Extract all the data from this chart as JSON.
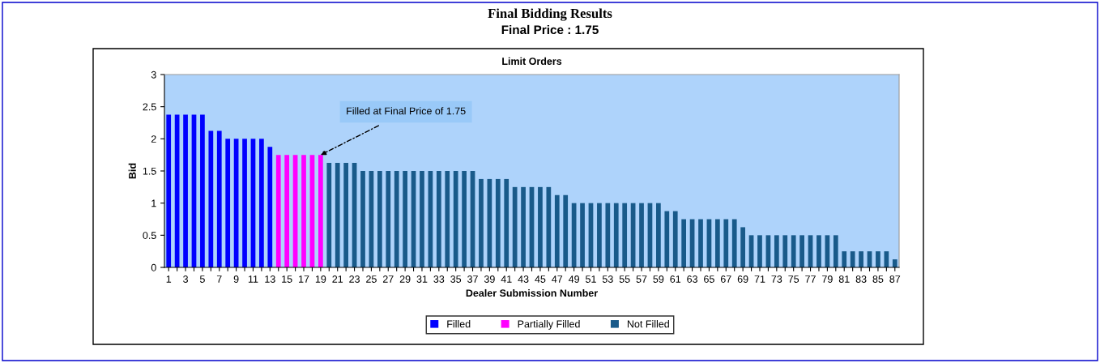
{
  "chart_data": {
    "type": "bar",
    "title": "Final Bidding Results",
    "subtitle": "Final Price : 1.75",
    "xlabel": "Dealer Submission Number",
    "ylabel": "Bid",
    "categories": [
      "1",
      null,
      "3",
      null,
      "5",
      null,
      "7",
      null,
      "9",
      null,
      "11",
      null,
      "13",
      null,
      "15",
      null,
      "17",
      null,
      "19",
      null,
      "21",
      null,
      "23",
      null,
      "25",
      null,
      "27",
      null,
      "29",
      null,
      "31",
      null,
      "33",
      null,
      "35",
      null,
      "37",
      null,
      "39",
      null,
      "41",
      null,
      "43",
      null,
      "45",
      null,
      "47",
      null,
      "49",
      null,
      "51",
      null,
      "53",
      null,
      "55",
      null,
      "57",
      null,
      "59",
      null,
      "61",
      null,
      "63",
      null,
      "65",
      null,
      "67",
      null,
      "69",
      null,
      "71",
      null,
      "73",
      null,
      "75",
      null,
      "77",
      null,
      "79",
      null,
      "81",
      null,
      "83",
      null,
      "85",
      null,
      "87"
    ],
    "series": [
      {
        "name": "Filled",
        "color": "#0000ff",
        "values": [
          2.375,
          2.375,
          2.375,
          2.375,
          2.375,
          2.125,
          2.125,
          2.0,
          2.0,
          2.0,
          2.0,
          2.0,
          1.875,
          null,
          null,
          null,
          null,
          null,
          null,
          null,
          null,
          null,
          null,
          null,
          null,
          null,
          null,
          null,
          null,
          null,
          null,
          null,
          null,
          null,
          null,
          null,
          null,
          null,
          null,
          null,
          null,
          null,
          null,
          null,
          null,
          null,
          null,
          null,
          null,
          null,
          null,
          null,
          null,
          null,
          null,
          null,
          null,
          null,
          null,
          null,
          null,
          null,
          null,
          null,
          null,
          null,
          null,
          null,
          null,
          null,
          null,
          null,
          null,
          null,
          null,
          null,
          null,
          null,
          null,
          null,
          null,
          null,
          null,
          null,
          null,
          null,
          null
        ]
      },
      {
        "name": "Partially Filled",
        "color": "#ff00ff",
        "values": [
          null,
          null,
          null,
          null,
          null,
          null,
          null,
          null,
          null,
          null,
          null,
          null,
          null,
          1.75,
          1.75,
          1.75,
          1.75,
          1.75,
          1.75,
          null,
          null,
          null,
          null,
          null,
          null,
          null,
          null,
          null,
          null,
          null,
          null,
          null,
          null,
          null,
          null,
          null,
          null,
          null,
          null,
          null,
          null,
          null,
          null,
          null,
          null,
          null,
          null,
          null,
          null,
          null,
          null,
          null,
          null,
          null,
          null,
          null,
          null,
          null,
          null,
          null,
          null,
          null,
          null,
          null,
          null,
          null,
          null,
          null,
          null,
          null,
          null,
          null,
          null,
          null,
          null,
          null,
          null,
          null,
          null,
          null,
          null,
          null,
          null,
          null,
          null,
          null,
          null
        ]
      },
      {
        "name": "Not Filled",
        "color": "#195a8a",
        "values": [
          null,
          null,
          null,
          null,
          null,
          null,
          null,
          null,
          null,
          null,
          null,
          null,
          null,
          null,
          null,
          null,
          null,
          null,
          null,
          1.625,
          1.625,
          1.625,
          1.625,
          1.5,
          1.5,
          1.5,
          1.5,
          1.5,
          1.5,
          1.5,
          1.5,
          1.5,
          1.5,
          1.5,
          1.5,
          1.5,
          1.5,
          1.375,
          1.375,
          1.375,
          1.375,
          1.25,
          1.25,
          1.25,
          1.25,
          1.25,
          1.125,
          1.125,
          1.0,
          1.0,
          1.0,
          1.0,
          1.0,
          1.0,
          1.0,
          1.0,
          1.0,
          1.0,
          1.0,
          0.875,
          0.875,
          0.75,
          0.75,
          0.75,
          0.75,
          0.75,
          0.75,
          0.75,
          0.625,
          0.5,
          0.5,
          0.5,
          0.5,
          0.5,
          0.5,
          0.5,
          0.5,
          0.5,
          0.5,
          0.5,
          0.25,
          0.25,
          0.25,
          0.25,
          0.25,
          0.25,
          0.125
        ]
      }
    ],
    "ylim": [
      0,
      3
    ],
    "yticks": [
      0,
      0.5,
      1,
      1.5,
      2,
      2.5,
      3
    ],
    "grid": false,
    "legend": "bottom",
    "annotations": [
      "Limit Orders",
      {
        "text": "Filled at Final Price of 1.75",
        "x": "19",
        "y": 1.75
      }
    ]
  }
}
